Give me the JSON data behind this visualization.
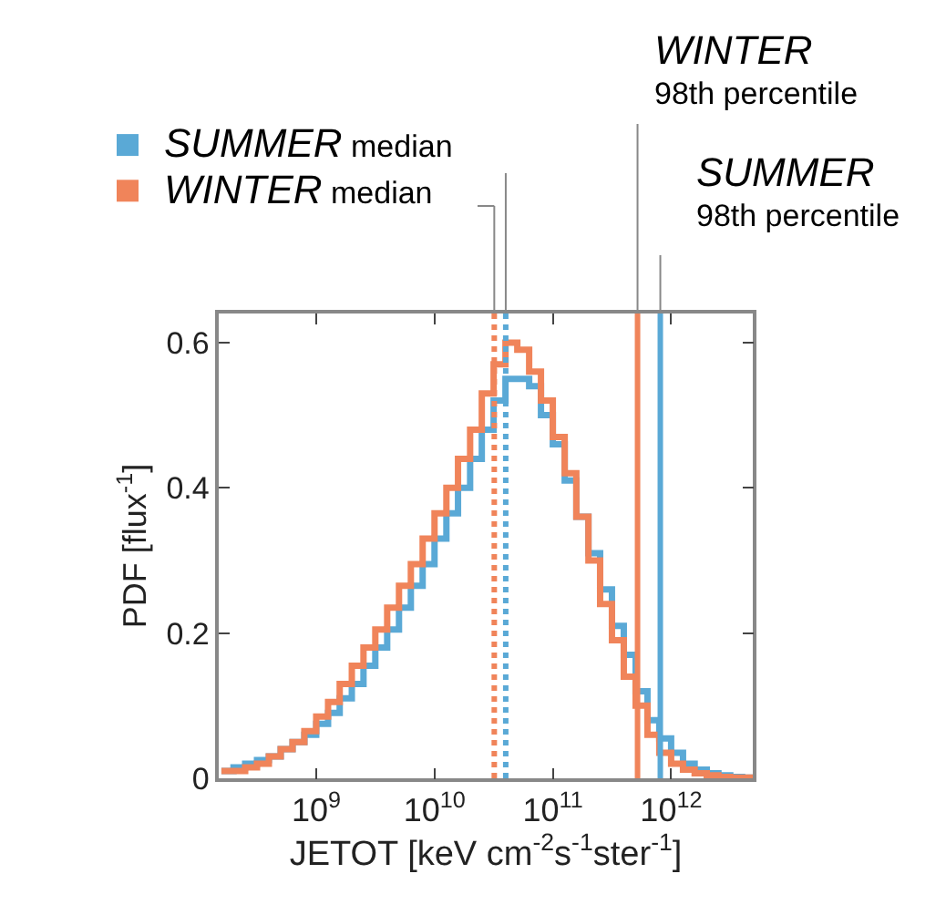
{
  "chart_data": {
    "type": "histogram",
    "xlabel": "JETOT [keV cm$^{-2}$s$^{-1}$ster$^{-1}$]",
    "ylabel": "PDF [flux$^{-1}$]",
    "bins": [
      158000000.0,
      200000000.0,
      251000000.0,
      316000000.0,
      398000000.0,
      501000000.0,
      631000000.0,
      794000000.0,
      1000000000.0,
      1260000000.0,
      1580000000.0,
      2000000000.0,
      2510000000.0,
      3160000000.0,
      3980000000.0,
      5010000000.0,
      6310000000.0,
      7940000000.0,
      10000000000.0,
      12600000000.0,
      15800000000.0,
      20000000000.0,
      25100000000.0,
      31600000000.0,
      39800000000.0,
      50100000000.0,
      63100000000.0,
      79400000000.0,
      100000000000.0,
      126000000000.0,
      158000000000.0,
      200000000000.0,
      251000000000.0,
      316000000000.0,
      398000000000.0,
      501000000000.0,
      631000000000.0,
      794000000000.0,
      1000000000000.0,
      1260000000000.0,
      1580000000000.0,
      2000000000000.0,
      2510000000000.0,
      3160000000000.0,
      3980000000000.0,
      5010000000000.0
    ],
    "series": [
      {
        "color": "#5aa9d6",
        "values": [
          0.01,
          0.015,
          0.02,
          0.025,
          0.03,
          0.04,
          0.05,
          0.06,
          0.075,
          0.09,
          0.11,
          0.13,
          0.155,
          0.18,
          0.205,
          0.235,
          0.265,
          0.295,
          0.33,
          0.365,
          0.4,
          0.44,
          0.48,
          0.52,
          0.55,
          0.55,
          0.54,
          0.5,
          0.46,
          0.41,
          0.36,
          0.31,
          0.26,
          0.21,
          0.17,
          0.12,
          0.08,
          0.055,
          0.035,
          0.02,
          0.012,
          0.007,
          0.004,
          0.002,
          0.001
        ]
      },
      {
        "color": "#f0845a",
        "values": [
          0.01,
          0.01,
          0.015,
          0.02,
          0.03,
          0.04,
          0.05,
          0.065,
          0.085,
          0.105,
          0.13,
          0.155,
          0.18,
          0.205,
          0.235,
          0.265,
          0.295,
          0.33,
          0.365,
          0.4,
          0.44,
          0.48,
          0.53,
          0.57,
          0.6,
          0.59,
          0.56,
          0.52,
          0.47,
          0.42,
          0.36,
          0.3,
          0.24,
          0.19,
          0.14,
          0.1,
          0.06,
          0.035,
          0.02,
          0.012,
          0.007,
          0.004,
          0.002,
          0.001,
          0.001
        ]
      }
    ],
    "log": "x",
    "xlim": [
      150000000.0,
      4900000000000.0
    ],
    "xticks": [
      {
        "value": 1000000000.0,
        "label": "10$^{9}$"
      },
      {
        "value": 10000000000.0,
        "label": "10$^{10}$"
      },
      {
        "value": 100000000000.0,
        "label": "10$^{11}$"
      },
      {
        "value": 1000000000000.0,
        "label": "10$^{12}$"
      }
    ],
    "ylim": [
      0,
      0.64
    ],
    "yticks": [
      0,
      0.2,
      0.4,
      0.6
    ],
    "legend": "top left",
    "ref_lines": [
      {
        "axis": "x",
        "value": 32000000000.0,
        "label": "WINTER median",
        "color": "#f0845a",
        "line_style": "dotted"
      },
      {
        "axis": "x",
        "value": 40000000000.0,
        "label": "SUMMER median",
        "color": "#5aa9d6",
        "line_style": "dotted"
      },
      {
        "axis": "x",
        "value": 520000000000.0,
        "label": "WINTER\n98th percentile",
        "color": "#f0845a",
        "line_style": "solid"
      },
      {
        "axis": "x",
        "value": 810000000000.0,
        "label": "SUMMER\n98th percentile",
        "color": "#5aa9d6",
        "line_style": "solid"
      }
    ]
  }
}
